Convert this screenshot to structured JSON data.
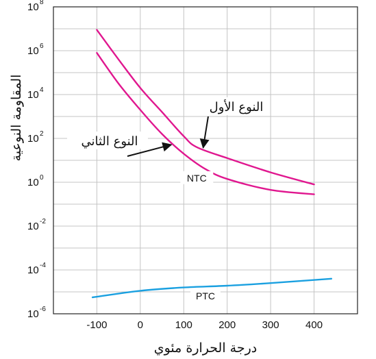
{
  "chart_data": {
    "type": "line",
    "xlabel": "درجة الحرارة مئوي",
    "ylabel": "المقاومة النوعية",
    "xlim": [
      -200,
      500
    ],
    "x_ticks": [
      -100,
      0,
      100,
      200,
      300,
      400
    ],
    "y_log_base": 10,
    "y_exponent_range": [
      -6,
      8
    ],
    "y_ticks": [
      {
        "base": "10",
        "exp": "8",
        "value": 8
      },
      {
        "base": "10",
        "exp": "6",
        "value": 6
      },
      {
        "base": "10",
        "exp": "4",
        "value": 4
      },
      {
        "base": "10",
        "exp": "2",
        "value": 2
      },
      {
        "base": "10",
        "exp": "0",
        "value": 0
      },
      {
        "base": "10",
        "exp": "-2",
        "value": -2
      },
      {
        "base": "10",
        "exp": "-4",
        "value": -4
      },
      {
        "base": "10",
        "exp": "-6",
        "value": -6
      }
    ],
    "grid": true,
    "series": [
      {
        "key": "ntc1",
        "color": "#e0178f",
        "x": [
          -100,
          -50,
          0,
          50,
          100,
          130,
          200,
          300,
          400
        ],
        "y": [
          6.95,
          5.6,
          4.3,
          3.2,
          2.1,
          1.6,
          1.1,
          0.45,
          -0.1
        ]
      },
      {
        "key": "ntc2",
        "color": "#e0178f",
        "x": [
          -100,
          -50,
          0,
          50,
          100,
          150,
          200,
          300,
          400
        ],
        "y": [
          5.9,
          4.5,
          3.3,
          2.2,
          1.3,
          0.6,
          0.15,
          -0.35,
          -0.55
        ]
      },
      {
        "key": "ptc",
        "color": "#1aa0e0",
        "name": "PTC",
        "x": [
          -110,
          0,
          100,
          200,
          300,
          440
        ],
        "y": [
          -5.25,
          -4.95,
          -4.8,
          -4.72,
          -4.6,
          -4.4
        ]
      }
    ],
    "annotations": [
      {
        "key": "ntc",
        "text": "NTC"
      },
      {
        "key": "type1",
        "text": "النوع الأول",
        "target_x": 140,
        "target_y": 1.7
      },
      {
        "key": "type2",
        "text": "النوع الثاني",
        "target_x": 65,
        "target_y": 1.9
      }
    ]
  }
}
